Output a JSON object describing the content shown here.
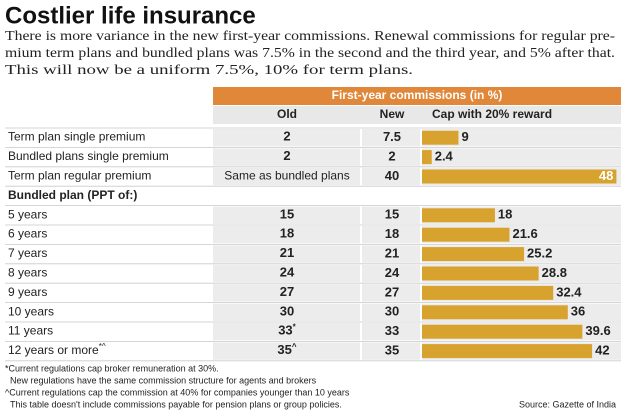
{
  "title": "Costlier life insurance",
  "subtitle": [
    "There is more variance in the new first-year commissions. Renewal commissions for regular pre-",
    "mium term plans and bundled plans was 7.5% in the second and the third year, and 5% after that.",
    "This will now be a uniform 7.5%, 10% for term plans."
  ],
  "table": {
    "group_header": "First-year commissions (in %)",
    "columns": [
      "Old",
      "New",
      "Cap with 20% reward"
    ],
    "rows": [
      {
        "label": "Term plan single premium",
        "old": 2,
        "new": 7.5,
        "cap": 9
      },
      {
        "label": "Bundled plans single premium",
        "old": 2,
        "new": 2,
        "cap": 2.4
      },
      {
        "label": "Term plan regular premium",
        "old": "Same as bundled plans",
        "new": 40,
        "cap": 48
      },
      {
        "label": "Bundled plan (PPT of:)"
      },
      {
        "label": "5 years",
        "old": 15,
        "new": 15,
        "cap": 18
      },
      {
        "label": "6 years",
        "old": 18,
        "new": 18,
        "cap": 21.6
      },
      {
        "label": "7 years",
        "old": 21,
        "new": 21,
        "cap": 25.2
      },
      {
        "label": "8 years",
        "old": 24,
        "new": 24,
        "cap": 28.8
      },
      {
        "label": "9 years",
        "old": 27,
        "new": 27,
        "cap": 32.4
      },
      {
        "label": "10 years",
        "old": 30,
        "new": 30,
        "cap": 36
      },
      {
        "label": "11 years",
        "old": 33,
        "old_note": "*",
        "new": 33,
        "cap": 39.6
      },
      {
        "label": "12 years or more",
        "label_note": "*^",
        "old": 35,
        "old_note": "^",
        "new": 35,
        "cap": 42
      }
    ]
  },
  "footnotes": [
    "*Current regulations cap broker remuneration at 30%.",
    "New regulations have the same commission structure for agents and brokers",
    "^Current regulations cap the commission at 40% for companies younger than 10 years",
    "This table doesn't include commissions payable for pension plans or group policies."
  ],
  "source": "Source: Gazette of India"
}
